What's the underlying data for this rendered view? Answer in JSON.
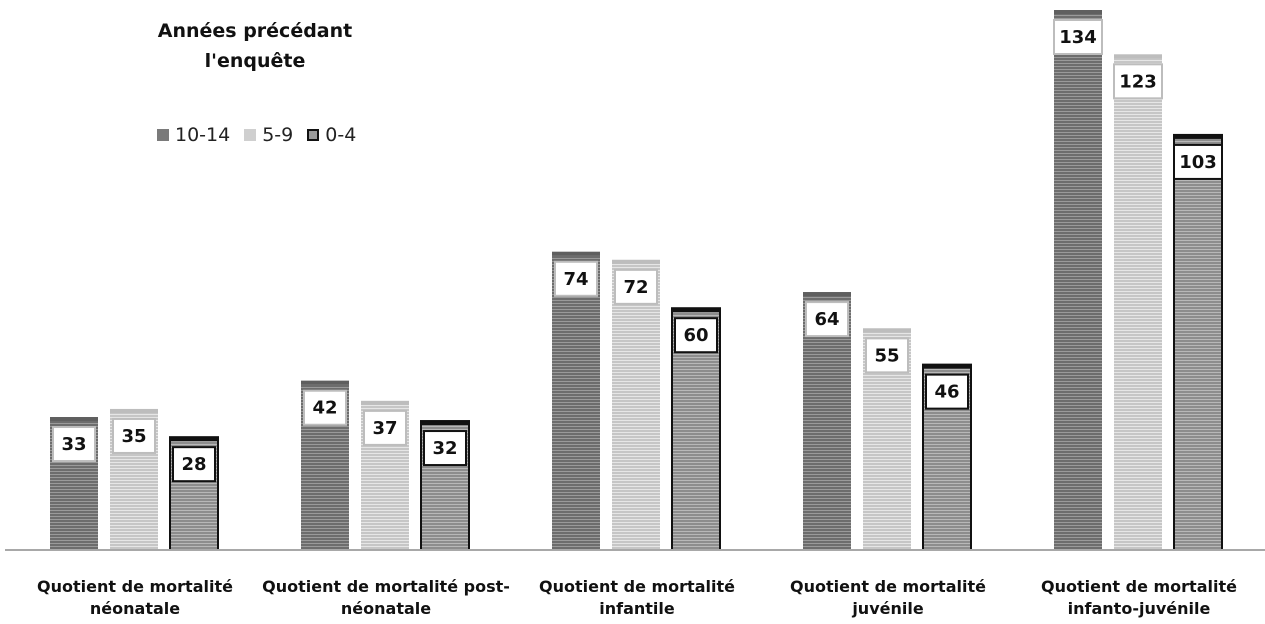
{
  "chart_data": {
    "type": "bar",
    "legend_title": "Années précédant\nl'enquête",
    "legend_placement": "top-left",
    "categories": [
      "Quotient de mortalité\nnéonatale",
      "Quotient de mortalité post-\nnéonatale",
      "Quotient de mortalité\ninfantile",
      "Quotient de mortalité\njuvénile",
      "Quotient de mortalité\ninfanto-juvénile"
    ],
    "series": [
      {
        "name": "10-14",
        "values": [
          33,
          42,
          74,
          64,
          134
        ],
        "color": "#7a7a7a"
      },
      {
        "name": "5-9",
        "values": [
          35,
          37,
          72,
          55,
          123
        ],
        "color": "#cfcfcf"
      },
      {
        "name": "0-4",
        "values": [
          28,
          32,
          60,
          46,
          103
        ],
        "color": "#9a9a9a"
      }
    ],
    "ylim": [
      0,
      134
    ],
    "grid": false,
    "data_labels": true
  }
}
